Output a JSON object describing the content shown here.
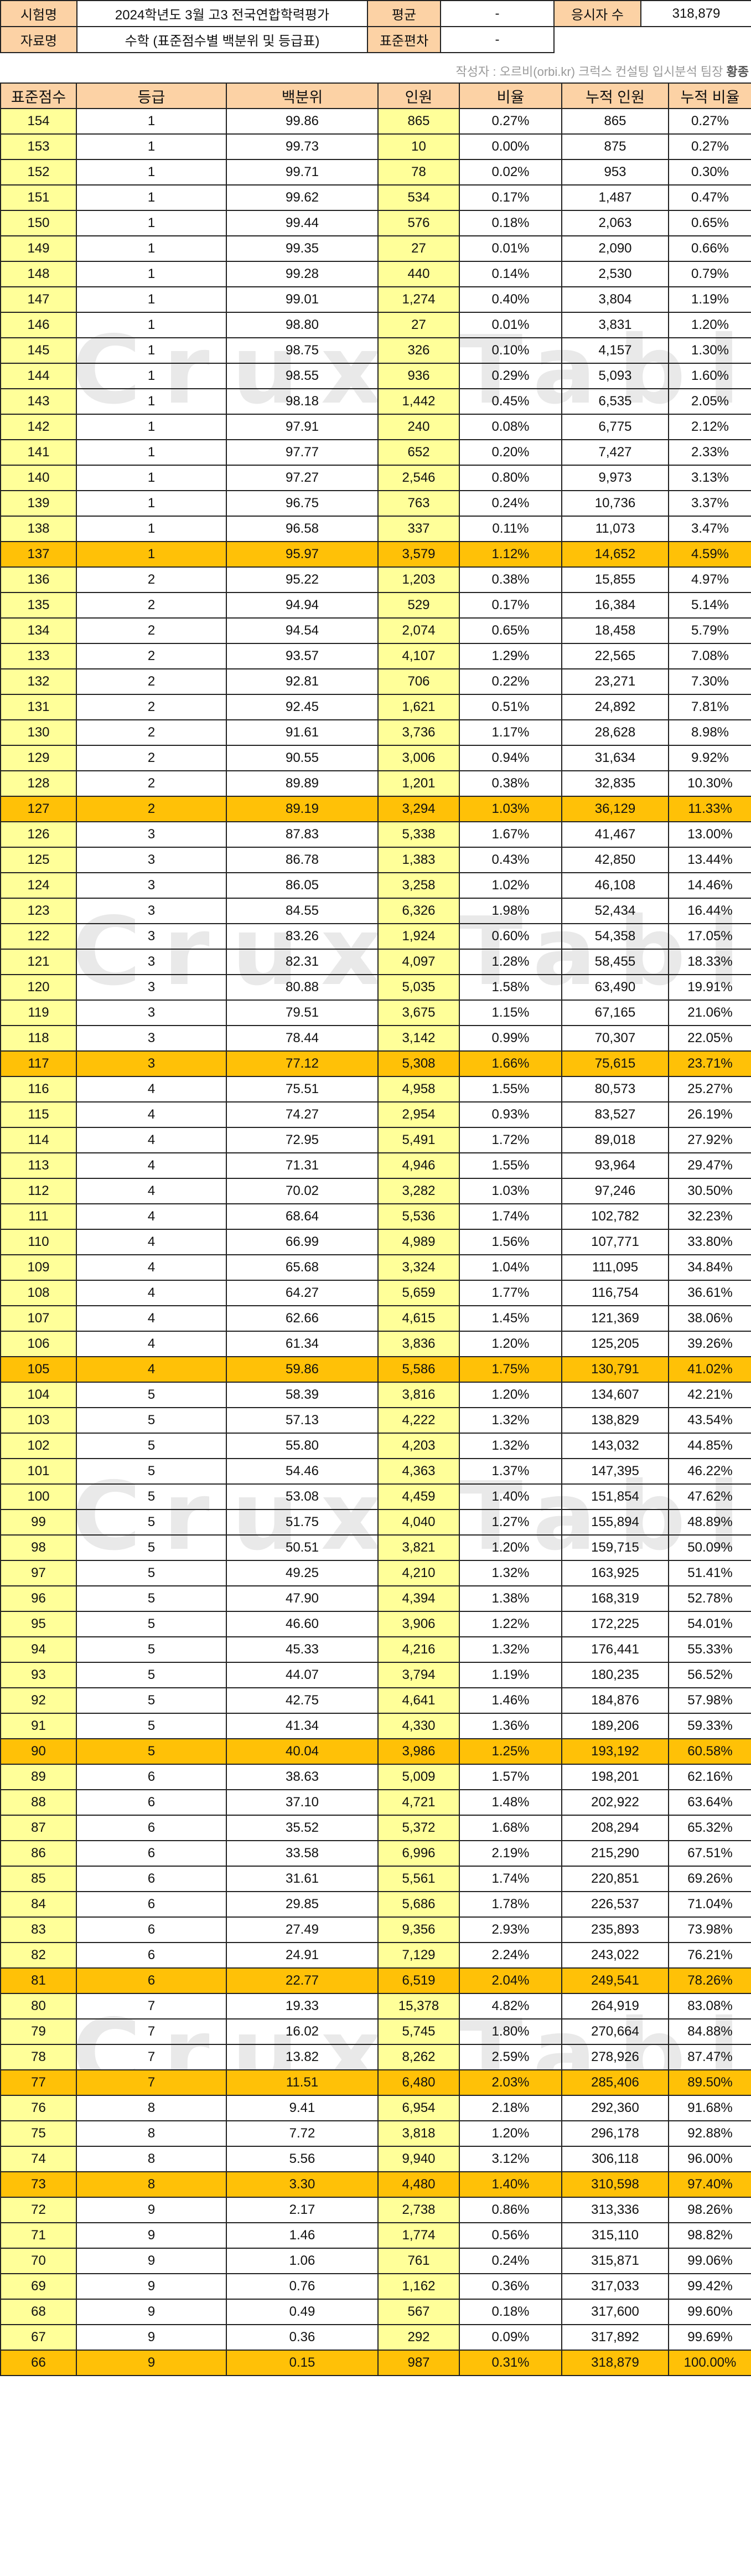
{
  "watermark": "Crux Table",
  "info": {
    "exam_label": "시험명",
    "exam_value": "2024학년도 3월 고3 전국연합학력평가",
    "mean_label": "평균",
    "mean_value": "-",
    "takers_label": "응시자 수",
    "takers_value": "318,879",
    "data_label": "자료명",
    "data_value": "수학 (표준점수별 백분위 및 등급표)",
    "sd_label": "표준편차",
    "sd_value": "-"
  },
  "note": {
    "text": "작성자 : 오르비(orbi.kr) 크럭스 컨설팅 입시분석 팀장 ",
    "author": "황종"
  },
  "highlight_color": "#ffc107",
  "columns": [
    "표준점수",
    "등급",
    "백분위",
    "인원",
    "비율",
    "누적 인원",
    "누적 비율"
  ],
  "rows": [
    [
      "154",
      "1",
      "99.86",
      "865",
      "0.27%",
      "865",
      "0.27%"
    ],
    [
      "153",
      "1",
      "99.73",
      "10",
      "0.00%",
      "875",
      "0.27%"
    ],
    [
      "152",
      "1",
      "99.71",
      "78",
      "0.02%",
      "953",
      "0.30%"
    ],
    [
      "151",
      "1",
      "99.62",
      "534",
      "0.17%",
      "1,487",
      "0.47%"
    ],
    [
      "150",
      "1",
      "99.44",
      "576",
      "0.18%",
      "2,063",
      "0.65%"
    ],
    [
      "149",
      "1",
      "99.35",
      "27",
      "0.01%",
      "2,090",
      "0.66%"
    ],
    [
      "148",
      "1",
      "99.28",
      "440",
      "0.14%",
      "2,530",
      "0.79%"
    ],
    [
      "147",
      "1",
      "99.01",
      "1,274",
      "0.40%",
      "3,804",
      "1.19%"
    ],
    [
      "146",
      "1",
      "98.80",
      "27",
      "0.01%",
      "3,831",
      "1.20%"
    ],
    [
      "145",
      "1",
      "98.75",
      "326",
      "0.10%",
      "4,157",
      "1.30%"
    ],
    [
      "144",
      "1",
      "98.55",
      "936",
      "0.29%",
      "5,093",
      "1.60%"
    ],
    [
      "143",
      "1",
      "98.18",
      "1,442",
      "0.45%",
      "6,535",
      "2.05%"
    ],
    [
      "142",
      "1",
      "97.91",
      "240",
      "0.08%",
      "6,775",
      "2.12%"
    ],
    [
      "141",
      "1",
      "97.77",
      "652",
      "0.20%",
      "7,427",
      "2.33%"
    ],
    [
      "140",
      "1",
      "97.27",
      "2,546",
      "0.80%",
      "9,973",
      "3.13%"
    ],
    [
      "139",
      "1",
      "96.75",
      "763",
      "0.24%",
      "10,736",
      "3.37%"
    ],
    [
      "138",
      "1",
      "96.58",
      "337",
      "0.11%",
      "11,073",
      "3.47%"
    ],
    [
      "137",
      "1",
      "95.97",
      "3,579",
      "1.12%",
      "14,652",
      "4.59%"
    ],
    [
      "136",
      "2",
      "95.22",
      "1,203",
      "0.38%",
      "15,855",
      "4.97%"
    ],
    [
      "135",
      "2",
      "94.94",
      "529",
      "0.17%",
      "16,384",
      "5.14%"
    ],
    [
      "134",
      "2",
      "94.54",
      "2,074",
      "0.65%",
      "18,458",
      "5.79%"
    ],
    [
      "133",
      "2",
      "93.57",
      "4,107",
      "1.29%",
      "22,565",
      "7.08%"
    ],
    [
      "132",
      "2",
      "92.81",
      "706",
      "0.22%",
      "23,271",
      "7.30%"
    ],
    [
      "131",
      "2",
      "92.45",
      "1,621",
      "0.51%",
      "24,892",
      "7.81%"
    ],
    [
      "130",
      "2",
      "91.61",
      "3,736",
      "1.17%",
      "28,628",
      "8.98%"
    ],
    [
      "129",
      "2",
      "90.55",
      "3,006",
      "0.94%",
      "31,634",
      "9.92%"
    ],
    [
      "128",
      "2",
      "89.89",
      "1,201",
      "0.38%",
      "32,835",
      "10.30%"
    ],
    [
      "127",
      "2",
      "89.19",
      "3,294",
      "1.03%",
      "36,129",
      "11.33%"
    ],
    [
      "126",
      "3",
      "87.83",
      "5,338",
      "1.67%",
      "41,467",
      "13.00%"
    ],
    [
      "125",
      "3",
      "86.78",
      "1,383",
      "0.43%",
      "42,850",
      "13.44%"
    ],
    [
      "124",
      "3",
      "86.05",
      "3,258",
      "1.02%",
      "46,108",
      "14.46%"
    ],
    [
      "123",
      "3",
      "84.55",
      "6,326",
      "1.98%",
      "52,434",
      "16.44%"
    ],
    [
      "122",
      "3",
      "83.26",
      "1,924",
      "0.60%",
      "54,358",
      "17.05%"
    ],
    [
      "121",
      "3",
      "82.31",
      "4,097",
      "1.28%",
      "58,455",
      "18.33%"
    ],
    [
      "120",
      "3",
      "80.88",
      "5,035",
      "1.58%",
      "63,490",
      "19.91%"
    ],
    [
      "119",
      "3",
      "79.51",
      "3,675",
      "1.15%",
      "67,165",
      "21.06%"
    ],
    [
      "118",
      "3",
      "78.44",
      "3,142",
      "0.99%",
      "70,307",
      "22.05%"
    ],
    [
      "117",
      "3",
      "77.12",
      "5,308",
      "1.66%",
      "75,615",
      "23.71%"
    ],
    [
      "116",
      "4",
      "75.51",
      "4,958",
      "1.55%",
      "80,573",
      "25.27%"
    ],
    [
      "115",
      "4",
      "74.27",
      "2,954",
      "0.93%",
      "83,527",
      "26.19%"
    ],
    [
      "114",
      "4",
      "72.95",
      "5,491",
      "1.72%",
      "89,018",
      "27.92%"
    ],
    [
      "113",
      "4",
      "71.31",
      "4,946",
      "1.55%",
      "93,964",
      "29.47%"
    ],
    [
      "112",
      "4",
      "70.02",
      "3,282",
      "1.03%",
      "97,246",
      "30.50%"
    ],
    [
      "111",
      "4",
      "68.64",
      "5,536",
      "1.74%",
      "102,782",
      "32.23%"
    ],
    [
      "110",
      "4",
      "66.99",
      "4,989",
      "1.56%",
      "107,771",
      "33.80%"
    ],
    [
      "109",
      "4",
      "65.68",
      "3,324",
      "1.04%",
      "111,095",
      "34.84%"
    ],
    [
      "108",
      "4",
      "64.27",
      "5,659",
      "1.77%",
      "116,754",
      "36.61%"
    ],
    [
      "107",
      "4",
      "62.66",
      "4,615",
      "1.45%",
      "121,369",
      "38.06%"
    ],
    [
      "106",
      "4",
      "61.34",
      "3,836",
      "1.20%",
      "125,205",
      "39.26%"
    ],
    [
      "105",
      "4",
      "59.86",
      "5,586",
      "1.75%",
      "130,791",
      "41.02%"
    ],
    [
      "104",
      "5",
      "58.39",
      "3,816",
      "1.20%",
      "134,607",
      "42.21%"
    ],
    [
      "103",
      "5",
      "57.13",
      "4,222",
      "1.32%",
      "138,829",
      "43.54%"
    ],
    [
      "102",
      "5",
      "55.80",
      "4,203",
      "1.32%",
      "143,032",
      "44.85%"
    ],
    [
      "101",
      "5",
      "54.46",
      "4,363",
      "1.37%",
      "147,395",
      "46.22%"
    ],
    [
      "100",
      "5",
      "53.08",
      "4,459",
      "1.40%",
      "151,854",
      "47.62%"
    ],
    [
      "99",
      "5",
      "51.75",
      "4,040",
      "1.27%",
      "155,894",
      "48.89%"
    ],
    [
      "98",
      "5",
      "50.51",
      "3,821",
      "1.20%",
      "159,715",
      "50.09%"
    ],
    [
      "97",
      "5",
      "49.25",
      "4,210",
      "1.32%",
      "163,925",
      "51.41%"
    ],
    [
      "96",
      "5",
      "47.90",
      "4,394",
      "1.38%",
      "168,319",
      "52.78%"
    ],
    [
      "95",
      "5",
      "46.60",
      "3,906",
      "1.22%",
      "172,225",
      "54.01%"
    ],
    [
      "94",
      "5",
      "45.33",
      "4,216",
      "1.32%",
      "176,441",
      "55.33%"
    ],
    [
      "93",
      "5",
      "44.07",
      "3,794",
      "1.19%",
      "180,235",
      "56.52%"
    ],
    [
      "92",
      "5",
      "42.75",
      "4,641",
      "1.46%",
      "184,876",
      "57.98%"
    ],
    [
      "91",
      "5",
      "41.34",
      "4,330",
      "1.36%",
      "189,206",
      "59.33%"
    ],
    [
      "90",
      "5",
      "40.04",
      "3,986",
      "1.25%",
      "193,192",
      "60.58%"
    ],
    [
      "89",
      "6",
      "38.63",
      "5,009",
      "1.57%",
      "198,201",
      "62.16%"
    ],
    [
      "88",
      "6",
      "37.10",
      "4,721",
      "1.48%",
      "202,922",
      "63.64%"
    ],
    [
      "87",
      "6",
      "35.52",
      "5,372",
      "1.68%",
      "208,294",
      "65.32%"
    ],
    [
      "86",
      "6",
      "33.58",
      "6,996",
      "2.19%",
      "215,290",
      "67.51%"
    ],
    [
      "85",
      "6",
      "31.61",
      "5,561",
      "1.74%",
      "220,851",
      "69.26%"
    ],
    [
      "84",
      "6",
      "29.85",
      "5,686",
      "1.78%",
      "226,537",
      "71.04%"
    ],
    [
      "83",
      "6",
      "27.49",
      "9,356",
      "2.93%",
      "235,893",
      "73.98%"
    ],
    [
      "82",
      "6",
      "24.91",
      "7,129",
      "2.24%",
      "243,022",
      "76.21%"
    ],
    [
      "81",
      "6",
      "22.77",
      "6,519",
      "2.04%",
      "249,541",
      "78.26%"
    ],
    [
      "80",
      "7",
      "19.33",
      "15,378",
      "4.82%",
      "264,919",
      "83.08%"
    ],
    [
      "79",
      "7",
      "16.02",
      "5,745",
      "1.80%",
      "270,664",
      "84.88%"
    ],
    [
      "78",
      "7",
      "13.82",
      "8,262",
      "2.59%",
      "278,926",
      "87.47%"
    ],
    [
      "77",
      "7",
      "11.51",
      "6,480",
      "2.03%",
      "285,406",
      "89.50%"
    ],
    [
      "76",
      "8",
      "9.41",
      "6,954",
      "2.18%",
      "292,360",
      "91.68%"
    ],
    [
      "75",
      "8",
      "7.72",
      "3,818",
      "1.20%",
      "296,178",
      "92.88%"
    ],
    [
      "74",
      "8",
      "5.56",
      "9,940",
      "3.12%",
      "306,118",
      "96.00%"
    ],
    [
      "73",
      "8",
      "3.30",
      "4,480",
      "1.40%",
      "310,598",
      "97.40%"
    ],
    [
      "72",
      "9",
      "2.17",
      "2,738",
      "0.86%",
      "313,336",
      "98.26%"
    ],
    [
      "71",
      "9",
      "1.46",
      "1,774",
      "0.56%",
      "315,110",
      "98.82%"
    ],
    [
      "70",
      "9",
      "1.06",
      "761",
      "0.24%",
      "315,871",
      "99.06%"
    ],
    [
      "69",
      "9",
      "0.76",
      "1,162",
      "0.36%",
      "317,033",
      "99.42%"
    ],
    [
      "68",
      "9",
      "0.49",
      "567",
      "0.18%",
      "317,600",
      "99.60%"
    ],
    [
      "67",
      "9",
      "0.36",
      "292",
      "0.09%",
      "317,892",
      "99.69%"
    ],
    [
      "66",
      "9",
      "0.15",
      "987",
      "0.31%",
      "318,879",
      "100.00%"
    ]
  ],
  "highlight_rows": [
    "137",
    "127",
    "117",
    "105",
    "90",
    "81",
    "77",
    "73",
    "66"
  ]
}
